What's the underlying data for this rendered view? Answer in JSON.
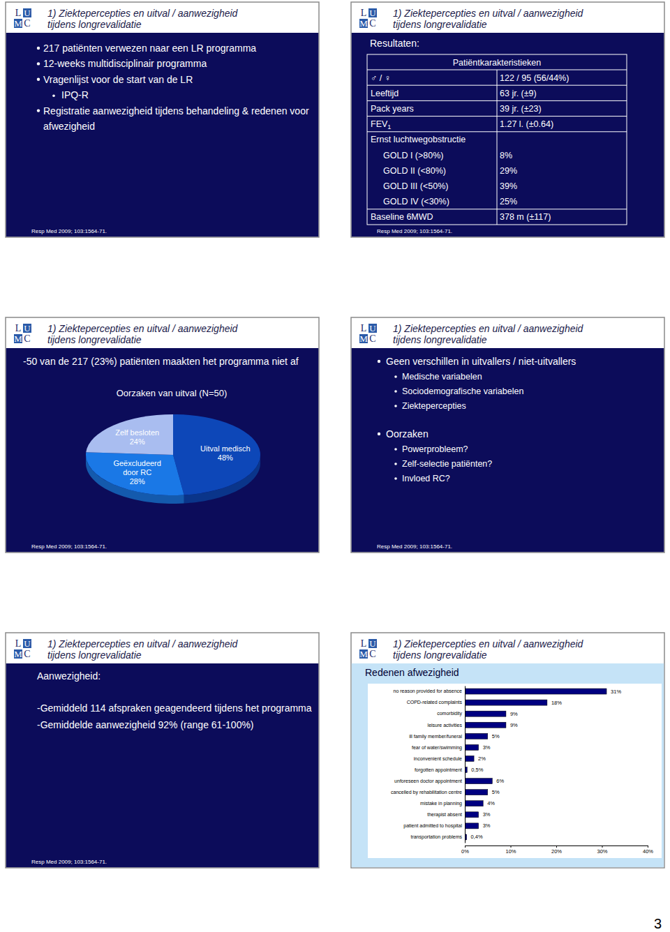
{
  "header": {
    "logo": [
      "L",
      "U",
      "M",
      "C"
    ],
    "title": [
      "1) Ziektepercepties en uitval / aanwezigheid",
      "tijdens longrevalidatie"
    ]
  },
  "footer": "Resp Med 2009; 103:1564-71.",
  "page_number": "3",
  "slides": [
    {
      "bullets": [
        {
          "text": [
            "217 patiënten verwezen naar een LR programma"
          ]
        },
        {
          "text": [
            "12-weeks multidisciplinair programma"
          ]
        },
        {
          "text": [
            "Vragenlijst voor de start van de LR"
          ],
          "sub": [
            "IPQ-R"
          ]
        },
        {
          "text": [
            "Registratie aanwezigheid tijdens behandeling & redenen voor",
            "afwezigheid"
          ]
        }
      ]
    },
    {
      "heading": "Resultaten:",
      "table": {
        "title": "Patiëntkarakteristieken",
        "rows": [
          {
            "label": "♂ / ♀",
            "value": "122 / 95 (56/44%)"
          },
          {
            "label": "Leeftijd",
            "value": "63 jr. (±9)"
          },
          {
            "label": "Pack years",
            "value": "39 jr. (±23)"
          },
          {
            "label": "FEV",
            "label_sub": "1",
            "value": "1.27 l. (±0.64)"
          },
          {
            "label": "Ernst luchtwegobstructie"
          },
          {
            "label": "GOLD I (>80%)",
            "value": "8%",
            "indent": true
          },
          {
            "label": "GOLD II (<80%)",
            "value": "29%",
            "indent": true
          },
          {
            "label": "GOLD III (<50%)",
            "value": "39%",
            "indent": true
          },
          {
            "label": "GOLD IV (<30%)",
            "value": "25%",
            "indent": true
          },
          {
            "label": "Baseline 6MWD",
            "value": "378 m (±117)"
          }
        ]
      }
    },
    {
      "heading": "-50 van de 217 (23%) patiënten maakten het programma niet af"
    },
    {
      "bullets": [
        {
          "text": [
            "Geen verschillen in uitvallers / niet-uitvallers"
          ],
          "sub": [
            "Medische variabelen",
            "Sociodemografische variabelen",
            "Ziektepercepties"
          ]
        },
        {
          "text": [
            "Oorzaken"
          ],
          "sub": [
            "Powerprobleem?",
            "Zelf-selectie patiënten?",
            "Invloed RC?"
          ]
        }
      ]
    },
    {
      "heading": "Aanwezigheid:",
      "lines": [
        "-Gemiddeld 114 afspraken geagendeerd tijdens het programma",
        "-Gemiddelde aanwezigheid 92% (range 61-100%)"
      ]
    },
    {
      "heading": "Redenen afwezigheid"
    }
  ],
  "chart_data": [
    {
      "type": "pie",
      "title": "Oorzaken van uitval (N=50)",
      "categories": [
        [
          "Uitval medisch"
        ],
        [
          "Geëxcludeerd",
          "door RC"
        ],
        [
          "Zelf besloten"
        ]
      ],
      "values": [
        48,
        28,
        24
      ],
      "value_labels": [
        "48%",
        "28%",
        "24%"
      ],
      "colors": [
        "#0d47b8",
        "#1a78e6",
        "#a9bdf0"
      ],
      "data_labels": true
    },
    {
      "type": "bar",
      "orientation": "horizontal",
      "categories": [
        "no reason provided for absence",
        "COPD-related complaints",
        "comorbidity",
        "leisure activities",
        "ill family member/funeral",
        "fear of water/swimming",
        "inconvenient schedule",
        "forgotten appointment",
        "unforeseen doctor appointment",
        "cancelled by rehabilitation centre",
        "mistake in planning",
        "therapist absent",
        "patient admitted to hospital",
        "transportation problems"
      ],
      "values": [
        31,
        18,
        9,
        9,
        5,
        3,
        2,
        0.5,
        6,
        5,
        4,
        3,
        3,
        0.4
      ],
      "value_labels": [
        "31%",
        "18%",
        "9%",
        "9%",
        "5%",
        "3%",
        "2%",
        "0,5%",
        "6%",
        "5%",
        "4%",
        "3%",
        "3%",
        "0,4%"
      ],
      "color": "#000080",
      "xlim": [
        0,
        40
      ],
      "xticks": [
        {
          "value": 0,
          "label": "0%"
        },
        {
          "value": 10,
          "label": "10%"
        },
        {
          "value": 20,
          "label": "20%"
        },
        {
          "value": 30,
          "label": "30%"
        },
        {
          "value": 40,
          "label": "40%"
        }
      ],
      "data_labels": true
    }
  ]
}
